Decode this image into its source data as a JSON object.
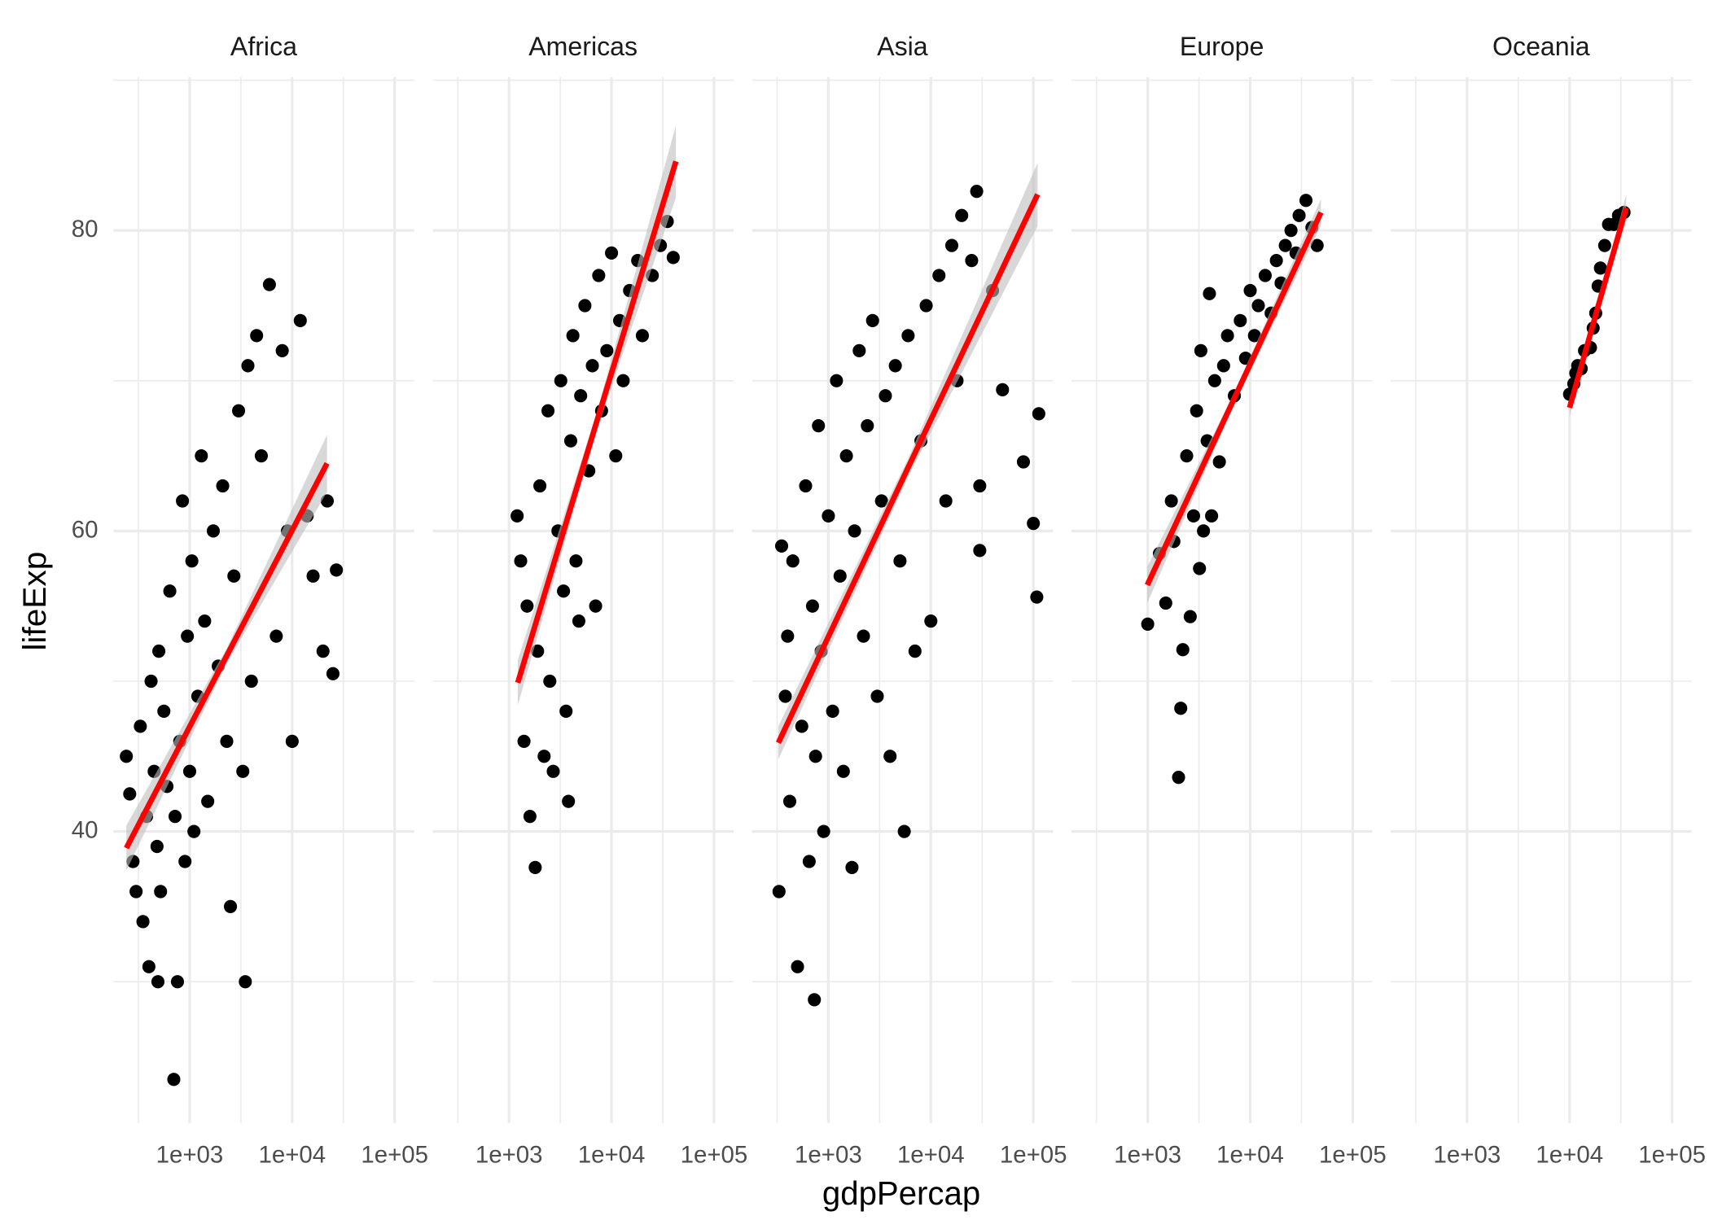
{
  "xlabel": "gdpPercap",
  "ylabel": "lifeExp",
  "chart_data": [
    {
      "type": "scatter",
      "title": "Africa",
      "log_x": true,
      "grid": true,
      "color": "#000000",
      "fit_color": "#ff0000",
      "band_color": "#bebebe",
      "x": [
        241,
        260,
        280,
        300,
        330,
        350,
        380,
        400,
        420,
        450,
        480,
        500,
        520,
        560,
        600,
        640,
        700,
        720,
        760,
        800,
        850,
        900,
        950,
        1000,
        1050,
        1100,
        1200,
        1300,
        1400,
        1500,
        1700,
        1900,
        2100,
        2300,
        2500,
        2700,
        3000,
        3300,
        3700,
        4000,
        4500,
        5000,
        6000,
        7000,
        8000,
        9000,
        10000,
        12000,
        14000,
        16000,
        20000,
        22000,
        27000,
        25000,
        3490,
        490
      ],
      "y": [
        45,
        42.5,
        38,
        36,
        47,
        34,
        41,
        31,
        50,
        44,
        39,
        52,
        36,
        48,
        43,
        56,
        23.5,
        41,
        30,
        46,
        62,
        38,
        53,
        44,
        58,
        40,
        49,
        65,
        54,
        42,
        60,
        51,
        63,
        46,
        35,
        57,
        68,
        44,
        71,
        50,
        73,
        65,
        76.4,
        53,
        72,
        60,
        46,
        74,
        61,
        57,
        52,
        62,
        57.4,
        50.5,
        30,
        30
      ],
      "fit": {
        "x": [
          241,
          2300,
          21900
        ],
        "y": [
          38.9,
          51.7,
          64.5
        ],
        "lower": [
          37.4,
          51.2,
          62.6
        ],
        "upper": [
          40.4,
          52.2,
          66.4
        ]
      },
      "xlim": [
        180,
        155000
      ],
      "xticks": [
        {
          "value": 1000,
          "label": "1e+03"
        },
        {
          "value": 10000,
          "label": "1e+04"
        },
        {
          "value": 100000,
          "label": "1e+05"
        }
      ],
      "xminor": [
        316.2,
        3162.3,
        31622.8
      ],
      "ylim": [
        20.6,
        90.2
      ],
      "yticks": [
        40,
        60,
        80
      ],
      "yminor": [
        30,
        50,
        70,
        90
      ]
    },
    {
      "type": "scatter",
      "title": "Americas",
      "log_x": true,
      "grid": true,
      "color": "#000000",
      "fit_color": "#ff0000",
      "band_color": "#bebebe",
      "x": [
        1200,
        1300,
        1400,
        1500,
        1600,
        1800,
        1900,
        2000,
        2200,
        2400,
        2500,
        2700,
        3000,
        3200,
        3400,
        3600,
        4000,
        4200,
        4500,
        5000,
        5500,
        6000,
        6500,
        7000,
        7500,
        8000,
        9000,
        10000,
        11000,
        12000,
        13000,
        15000,
        18000,
        20000,
        25000,
        30000,
        35000,
        40000,
        4800,
        3800
      ],
      "y": [
        61,
        58,
        46,
        55,
        41,
        37.6,
        52,
        63,
        45,
        68,
        50,
        44,
        60,
        70,
        56,
        48,
        66,
        73,
        58,
        69,
        75,
        64,
        71,
        55,
        77,
        68,
        72,
        78.5,
        65,
        74,
        70,
        76,
        78,
        73,
        77,
        79,
        80.6,
        78.2,
        54,
        42
      ],
      "fit": {
        "x": [
          1217,
          7190,
          42500
        ],
        "y": [
          49.9,
          67.3,
          84.6
        ],
        "lower": [
          48.4,
          66.7,
          82.2
        ],
        "upper": [
          51.4,
          67.9,
          87.0
        ]
      },
      "xlim": [
        180,
        155000
      ],
      "xticks": [
        {
          "value": 1000,
          "label": "1e+03"
        },
        {
          "value": 10000,
          "label": "1e+04"
        },
        {
          "value": 100000,
          "label": "1e+05"
        }
      ],
      "xminor": [
        316.2,
        3162.3,
        31622.8
      ],
      "ylim": [
        20.6,
        90.2
      ],
      "yticks": [
        40,
        60,
        80
      ],
      "yminor": [
        30,
        50,
        70,
        90
      ]
    },
    {
      "type": "scatter",
      "title": "Asia",
      "log_x": true,
      "grid": true,
      "color": "#000000",
      "fit_color": "#ff0000",
      "band_color": "#bebebe",
      "x": [
        330,
        350,
        380,
        400,
        420,
        450,
        500,
        550,
        600,
        650,
        700,
        730,
        750,
        800,
        850,
        900,
        1000,
        1100,
        1200,
        1300,
        1400,
        1500,
        1700,
        1800,
        2000,
        2200,
        2400,
        2700,
        3000,
        3300,
        3600,
        4000,
        4500,
        5000,
        5500,
        6000,
        7000,
        8000,
        9000,
        10000,
        12000,
        14000,
        16000,
        18000,
        20000,
        25000,
        28000,
        30000,
        40000,
        50000,
        80000,
        100000,
        108000,
        113000,
        30000
      ],
      "y": [
        36,
        59,
        49,
        53,
        42,
        58,
        31,
        47,
        63,
        38,
        55,
        28.8,
        45,
        67,
        52,
        40,
        61,
        48,
        70,
        57,
        44,
        65,
        37.6,
        60,
        72,
        53,
        67,
        74,
        49,
        62,
        69,
        45,
        71,
        58,
        40,
        73,
        52,
        66,
        75,
        54,
        77,
        62,
        79,
        70,
        81,
        78,
        82.6,
        63,
        76,
        69.4,
        64.6,
        60.5,
        55.6,
        67.8,
        58.7
      ],
      "fit": {
        "x": [
          325,
          5980,
          110000
        ],
        "y": [
          45.9,
          64.2,
          82.4
        ],
        "lower": [
          44.8,
          63.6,
          80.3
        ],
        "upper": [
          47.0,
          64.8,
          84.5
        ]
      },
      "xlim": [
        180,
        155000
      ],
      "xticks": [
        {
          "value": 1000,
          "label": "1e+03"
        },
        {
          "value": 10000,
          "label": "1e+04"
        },
        {
          "value": 100000,
          "label": "1e+05"
        }
      ],
      "xminor": [
        316.2,
        3162.3,
        31622.8
      ],
      "ylim": [
        20.6,
        90.2
      ],
      "yticks": [
        40,
        60,
        80
      ],
      "yminor": [
        30,
        50,
        70,
        90
      ]
    },
    {
      "type": "scatter",
      "title": "Europe",
      "log_x": true,
      "grid": true,
      "color": "#000000",
      "fit_color": "#ff0000",
      "band_color": "#bebebe",
      "x": [
        1000,
        1300,
        1500,
        1700,
        1800,
        2000,
        2100,
        2200,
        2400,
        2600,
        2800,
        3000,
        3300,
        3500,
        3800,
        4000,
        4500,
        5000,
        5500,
        6000,
        7000,
        8000,
        9000,
        10000,
        11000,
        12000,
        14000,
        16000,
        18000,
        20000,
        22000,
        25000,
        28000,
        30000,
        35000,
        40000,
        45000,
        3200,
        4200
      ],
      "y": [
        53.8,
        58.5,
        55.2,
        62,
        59.3,
        43.6,
        48.2,
        52.1,
        65,
        54.3,
        61,
        68,
        72,
        60,
        66,
        75.8,
        70,
        64.6,
        71,
        73,
        69,
        74,
        71.5,
        76,
        73,
        75,
        77,
        74.5,
        78,
        76.5,
        79,
        80,
        78.5,
        81,
        82,
        80.2,
        79,
        57.5,
        61
      ],
      "fit": {
        "x": [
          990,
          6960,
          49000
        ],
        "y": [
          56.4,
          68.8,
          81.2
        ],
        "lower": [
          55.2,
          68.4,
          80.3
        ],
        "upper": [
          57.6,
          69.2,
          82.1
        ]
      },
      "xlim": [
        180,
        155000
      ],
      "xticks": [
        {
          "value": 1000,
          "label": "1e+03"
        },
        {
          "value": 10000,
          "label": "1e+04"
        },
        {
          "value": 100000,
          "label": "1e+05"
        }
      ],
      "xminor": [
        316.2,
        3162.3,
        31622.8
      ],
      "ylim": [
        20.6,
        90.2
      ],
      "yticks": [
        40,
        60,
        80
      ],
      "yminor": [
        30,
        50,
        70,
        90
      ]
    },
    {
      "type": "scatter",
      "title": "Oceania",
      "log_x": true,
      "grid": true,
      "color": "#000000",
      "fit_color": "#ff0000",
      "band_color": "#bebebe",
      "x": [
        10000,
        11000,
        11500,
        12000,
        13000,
        14000,
        16000,
        17000,
        18000,
        19000,
        20000,
        22000,
        24000,
        27000,
        30000,
        34000
      ],
      "y": [
        69.1,
        69.8,
        70.5,
        71,
        70.8,
        72,
        72.2,
        73.5,
        74.5,
        76.3,
        77.5,
        79,
        80.4,
        80.4,
        81,
        81.2
      ],
      "fit": {
        "x": [
          10000,
          18900,
          35700
        ],
        "y": [
          68.2,
          74.9,
          81.5
        ],
        "lower": [
          67.6,
          74.6,
          80.6
        ],
        "upper": [
          68.8,
          75.2,
          82.4
        ]
      },
      "xlim": [
        180,
        155000
      ],
      "xticks": [
        {
          "value": 1000,
          "label": "1e+03"
        },
        {
          "value": 10000,
          "label": "1e+04"
        },
        {
          "value": 100000,
          "label": "1e+05"
        }
      ],
      "xminor": [
        316.2,
        3162.3,
        31622.8
      ],
      "ylim": [
        20.6,
        90.2
      ],
      "yticks": [
        40,
        60,
        80
      ],
      "yminor": [
        30,
        50,
        70,
        90
      ]
    }
  ]
}
